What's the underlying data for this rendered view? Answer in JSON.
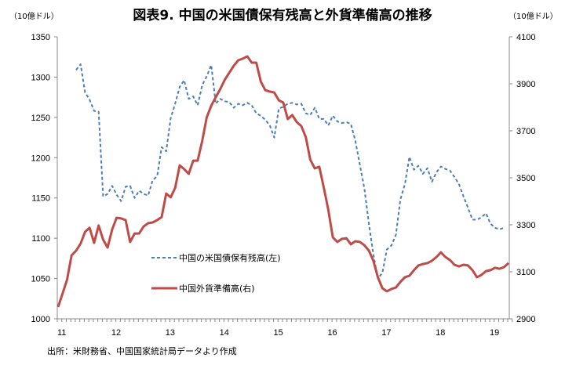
{
  "chart_data": {
    "type": "line",
    "title": "図表9. 中国の米国債保有残高と外貨準備高の推移",
    "left_unit": "（10億ドル）",
    "right_unit": "（10億ドル）",
    "source": "出所：米財務省、中国国家統計局データより作成",
    "x_tick_labels": [
      "11",
      "12",
      "13",
      "14",
      "15",
      "16",
      "17",
      "18",
      "19"
    ],
    "x_start": "2011-01",
    "months": 101,
    "ylim_left": [
      1000,
      1350
    ],
    "yticks_left": [
      "1000",
      "1050",
      "1100",
      "1150",
      "1200",
      "1250",
      "1300",
      "1350"
    ],
    "ylim_right": [
      2900,
      4100
    ],
    "yticks_right": [
      "2900",
      "3100",
      "3300",
      "3500",
      "3700",
      "3900",
      "4100"
    ],
    "grid": false,
    "legend_placement": "center-left",
    "series": [
      {
        "name": "中国の米国債保有残高(左)",
        "axis": "left",
        "color": "#4A7EBB",
        "style": "dashed",
        "start_month_index": 4,
        "values": [
          1309,
          1316,
          1281,
          1272,
          1258,
          1257,
          1152,
          1155,
          1165,
          1154,
          1146,
          1164,
          1165,
          1150,
          1159,
          1155,
          1153,
          1172,
          1177,
          1213,
          1208,
          1249,
          1267,
          1288,
          1296,
          1273,
          1276,
          1265,
          1290,
          1301,
          1315,
          1267,
          1273,
          1270,
          1269,
          1262,
          1267,
          1265,
          1268,
          1265,
          1255,
          1252,
          1247,
          1240,
          1225,
          1261,
          1263,
          1267,
          1268,
          1266,
          1267,
          1255,
          1253,
          1262,
          1248,
          1248,
          1240,
          1252,
          1245,
          1243,
          1244,
          1242,
          1221,
          1191,
          1162,
          1118,
          1080,
          1050,
          1057,
          1086,
          1091,
          1104,
          1148,
          1167,
          1201,
          1185,
          1190,
          1180,
          1187,
          1170,
          1182,
          1189,
          1186,
          1184,
          1176,
          1167,
          1152,
          1138,
          1123,
          1123,
          1126,
          1131,
          1118,
          1113,
          1111,
          1113
        ]
      },
      {
        "name": "中国外貨準備高(右)",
        "axis": "right",
        "color": "#BE4B48",
        "style": "solid",
        "start_month_index": 0,
        "values": [
          2950,
          3007,
          3067,
          3170,
          3190,
          3220,
          3270,
          3287,
          3223,
          3297,
          3237,
          3203,
          3280,
          3330,
          3327,
          3320,
          3227,
          3263,
          3263,
          3293,
          3307,
          3310,
          3320,
          3333,
          3433,
          3417,
          3457,
          3553,
          3537,
          3517,
          3573,
          3573,
          3657,
          3757,
          3807,
          3843,
          3877,
          3917,
          3947,
          3977,
          4000,
          4007,
          4017,
          3990,
          3990,
          3910,
          3873,
          3867,
          3863,
          3830,
          3820,
          3750,
          3767,
          3737,
          3720,
          3673,
          3577,
          3540,
          3547,
          3457,
          3363,
          3247,
          3227,
          3240,
          3243,
          3217,
          3230,
          3227,
          3213,
          3190,
          3147,
          3077,
          3030,
          3017,
          3027,
          3033,
          3057,
          3077,
          3083,
          3107,
          3127,
          3133,
          3137,
          3147,
          3163,
          3183,
          3163,
          3150,
          3130,
          3123,
          3130,
          3127,
          3107,
          3077,
          3087,
          3103,
          3107,
          3117,
          3113,
          3120,
          3137
        ]
      }
    ]
  }
}
